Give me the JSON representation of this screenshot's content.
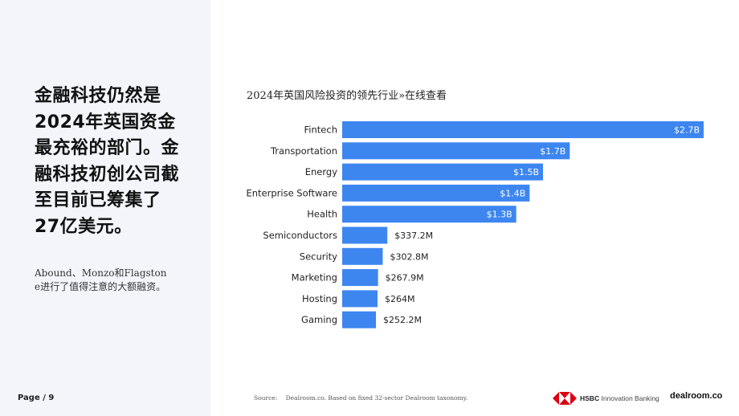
{
  "headline": "金融科技仍然是2024年英国资金最充裕的部门。金融科技初创公司截至目前已筹集了27亿美元。",
  "subtext": "Abound、Monzo和Flagstone进行了值得注意的大额融资。",
  "page_label": "Page / 9",
  "source": {
    "label": "Source:",
    "text": "Dealroom.co. Based on fixed 32-sector Dealroom taxonomy."
  },
  "logos": {
    "hsbc_bold": "HSBC",
    "hsbc_rest": "Innovation Banking",
    "dealroom": "dealroom.co"
  },
  "colors": {
    "bar": "#3d86f0",
    "hsbc_red": "#db0011",
    "panel_bg": "#f3f5fa"
  },
  "chart_data": {
    "type": "bar",
    "orientation": "horizontal",
    "title": "2024年英国风险投资的领先行业»在线查看",
    "categories": [
      "Fintech",
      "Transportation",
      "Energy",
      "Enterprise Software",
      "Health",
      "Semiconductors",
      "Security",
      "Marketing",
      "Hosting",
      "Gaming"
    ],
    "values": [
      2700,
      1700,
      1500,
      1400,
      1300,
      337.2,
      302.8,
      267.9,
      264,
      252.2
    ],
    "value_unit": "$M",
    "data_labels": [
      "$2.7B",
      "$1.7B",
      "$1.5B",
      "$1.4B",
      "$1.3B",
      "$337.2M",
      "$302.8M",
      "$267.9M",
      "$264M",
      "$252.2M"
    ],
    "xlabel": "",
    "ylabel": "",
    "grid": false,
    "legend": "none"
  }
}
